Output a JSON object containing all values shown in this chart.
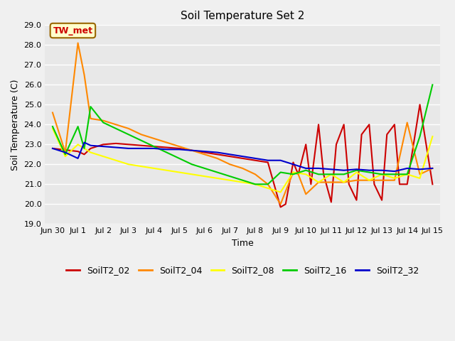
{
  "title": "Soil Temperature Set 2",
  "xlabel": "Time",
  "ylabel": "Soil Temperature (C)",
  "ylim": [
    19.0,
    29.0
  ],
  "yticks": [
    19.0,
    20.0,
    21.0,
    22.0,
    23.0,
    24.0,
    25.0,
    26.0,
    27.0,
    28.0,
    29.0
  ],
  "bg_color": "#e8e8e8",
  "annotation_text": "TW_met",
  "annotation_bg": "#ffffcc",
  "annotation_border": "#996600",
  "annotation_text_color": "#cc0000",
  "series": {
    "SoilT2_02": {
      "color": "#cc0000",
      "x": [
        0,
        1,
        1.25,
        1.5,
        2,
        2.5,
        3,
        3.5,
        4,
        4.5,
        5,
        5.5,
        6,
        6.5,
        7,
        7.5,
        8,
        8.5,
        9,
        9.2,
        9.5,
        9.7,
        10,
        10.2,
        10.5,
        10.7,
        11,
        11.2,
        11.5,
        11.7,
        12,
        12.2,
        12.5,
        12.7,
        13,
        13.2,
        13.5,
        13.7,
        14,
        14.5,
        15
      ],
      "y": [
        22.8,
        22.65,
        22.5,
        22.8,
        23.0,
        23.05,
        23.0,
        22.95,
        22.9,
        22.85,
        22.8,
        22.7,
        22.6,
        22.5,
        22.4,
        22.3,
        22.2,
        22.1,
        19.85,
        20.0,
        22.1,
        21.5,
        23.0,
        21.0,
        24.0,
        21.5,
        20.1,
        23.0,
        24.0,
        21.0,
        20.2,
        23.5,
        24.0,
        21.0,
        20.2,
        23.5,
        24.0,
        21.0,
        21.0,
        25.0,
        21.0
      ]
    },
    "SoilT2_04": {
      "color": "#ff8800",
      "x": [
        0,
        0.5,
        1,
        1.25,
        1.5,
        2,
        2.5,
        3,
        3.5,
        4,
        4.5,
        5,
        5.5,
        6,
        6.5,
        7,
        7.5,
        8,
        8.5,
        9,
        9.5,
        9.7,
        10,
        10.5,
        10.7,
        11,
        11.5,
        12,
        12.5,
        13,
        13.5,
        14,
        14.5,
        15
      ],
      "y": [
        24.6,
        22.6,
        28.1,
        26.5,
        24.3,
        24.2,
        24.0,
        23.8,
        23.5,
        23.3,
        23.1,
        22.9,
        22.7,
        22.5,
        22.3,
        22.0,
        21.8,
        21.5,
        21.0,
        20.0,
        21.6,
        21.5,
        20.5,
        21.1,
        21.1,
        21.1,
        21.1,
        21.2,
        21.2,
        21.2,
        21.2,
        24.1,
        21.5,
        21.8
      ]
    },
    "SoilT2_08": {
      "color": "#ffff00",
      "x": [
        0,
        0.5,
        1,
        1.25,
        1.5,
        2,
        2.5,
        3,
        3.5,
        4,
        4.5,
        5,
        5.5,
        6,
        6.5,
        7,
        7.5,
        8,
        8.5,
        9,
        9.5,
        10,
        10.5,
        11,
        11.5,
        12,
        12.5,
        13,
        13.5,
        14,
        14.5,
        15
      ],
      "y": [
        23.8,
        22.4,
        23.0,
        22.8,
        22.6,
        22.4,
        22.2,
        22.0,
        21.9,
        21.8,
        21.7,
        21.6,
        21.5,
        21.4,
        21.3,
        21.2,
        21.1,
        21.0,
        20.8,
        20.6,
        21.6,
        21.5,
        21.1,
        21.5,
        21.1,
        21.6,
        21.2,
        21.5,
        21.3,
        21.5,
        21.3,
        23.4
      ]
    },
    "SoilT2_16": {
      "color": "#00cc00",
      "x": [
        0,
        0.5,
        1,
        1.25,
        1.5,
        2,
        2.5,
        3,
        3.5,
        4,
        4.5,
        5,
        5.5,
        6,
        6.5,
        7,
        7.5,
        8,
        8.5,
        9,
        9.5,
        10,
        10.5,
        11,
        11.5,
        12,
        12.5,
        13,
        13.5,
        14,
        14.5,
        15
      ],
      "y": [
        23.9,
        22.5,
        23.9,
        22.8,
        24.9,
        24.1,
        23.8,
        23.5,
        23.2,
        22.9,
        22.6,
        22.3,
        22.0,
        21.8,
        21.6,
        21.4,
        21.2,
        21.0,
        21.0,
        21.6,
        21.5,
        21.7,
        21.5,
        21.5,
        21.5,
        21.7,
        21.6,
        21.5,
        21.5,
        21.5,
        23.4,
        26.0
      ]
    },
    "SoilT2_32": {
      "color": "#0000cc",
      "x": [
        0,
        0.5,
        1,
        1.25,
        1.5,
        2,
        2.5,
        3,
        3.5,
        4,
        4.5,
        5,
        5.5,
        6,
        6.5,
        7,
        7.5,
        8,
        8.5,
        9,
        9.5,
        10,
        10.5,
        11,
        11.5,
        12,
        12.5,
        13,
        13.5,
        14,
        14.5,
        15
      ],
      "y": [
        22.8,
        22.6,
        22.3,
        23.1,
        22.95,
        22.9,
        22.85,
        22.8,
        22.8,
        22.8,
        22.75,
        22.75,
        22.7,
        22.65,
        22.6,
        22.5,
        22.4,
        22.3,
        22.2,
        22.2,
        22.0,
        21.8,
        21.8,
        21.75,
        21.7,
        21.75,
        21.7,
        21.7,
        21.65,
        21.8,
        21.75,
        21.8
      ]
    }
  },
  "xtick_positions": [
    0,
    1,
    2,
    3,
    4,
    5,
    6,
    7,
    8,
    9,
    10,
    11,
    12,
    13,
    14,
    15
  ],
  "xtick_labels": [
    "Jun 30",
    "Jul 1",
    "Jul 2",
    "Jul 3",
    "Jul 4",
    "Jul 5",
    "Jul 6",
    "Jul 7",
    "Jul 8",
    "Jul 9",
    "Jul 10",
    "Jul 11",
    "Jul 12",
    "Jul 13",
    "Jul 14",
    "Jul 15"
  ],
  "legend_order": [
    "SoilT2_02",
    "SoilT2_04",
    "SoilT2_08",
    "SoilT2_16",
    "SoilT2_32"
  ],
  "fig_facecolor": "#f0f0f0"
}
